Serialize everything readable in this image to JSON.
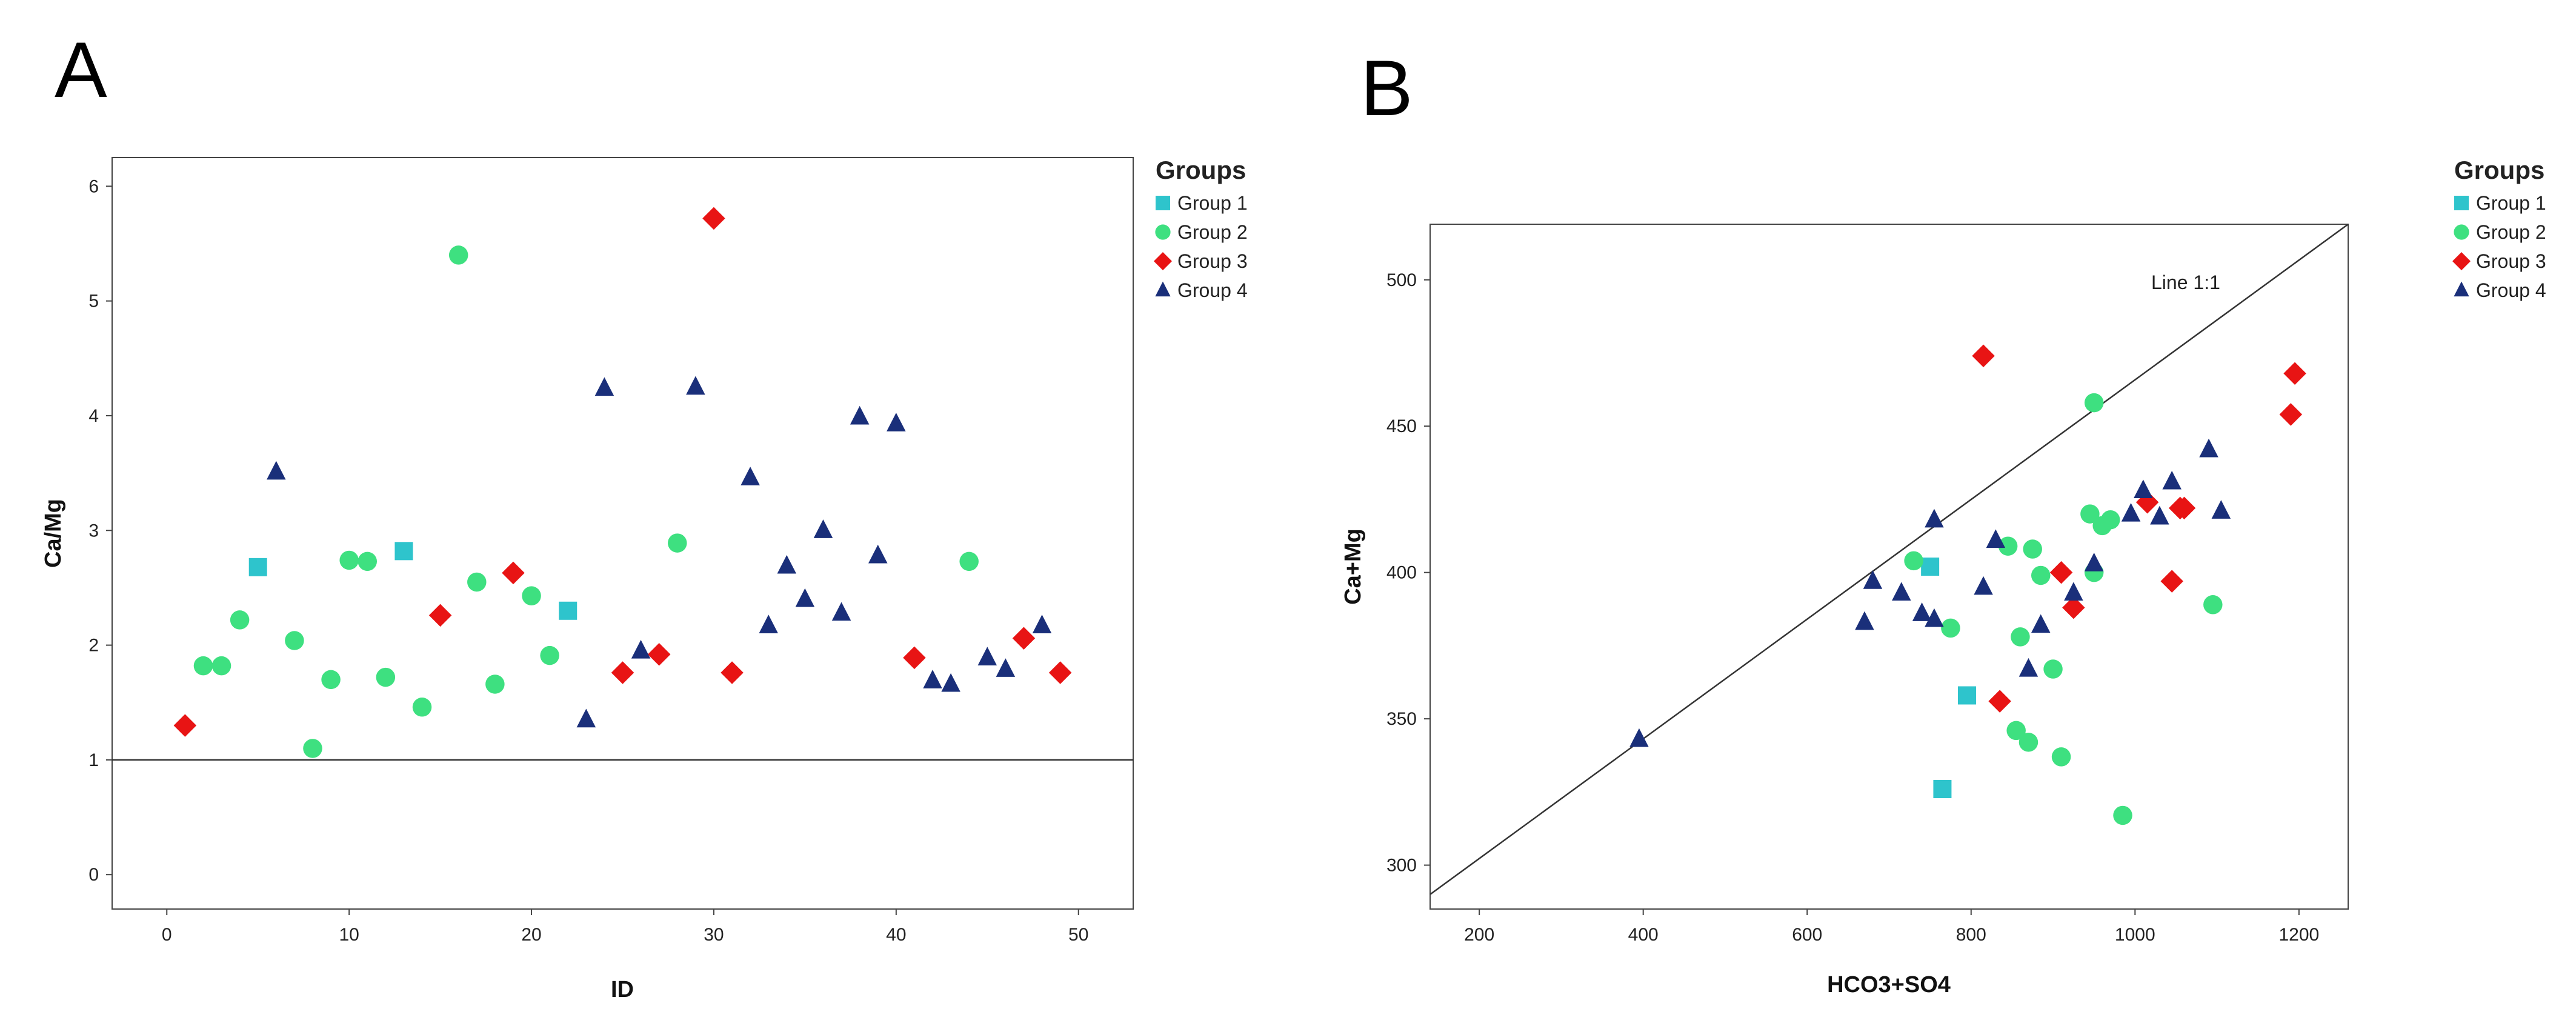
{
  "colors": {
    "Group 1": "#2ec4cc",
    "Group 2": "#3ee080",
    "Group 3": "#e81414",
    "Group 4": "#1a2f7a"
  },
  "legend": {
    "title": "Groups",
    "items": [
      {
        "name": "Group 1",
        "marker": "square"
      },
      {
        "name": "Group 2",
        "marker": "circle"
      },
      {
        "name": "Group 3",
        "marker": "diamond"
      },
      {
        "name": "Group 4",
        "marker": "triangle"
      }
    ]
  },
  "chart_data": [
    {
      "panel": "A",
      "type": "scatter",
      "title": "",
      "xlabel": "ID",
      "ylabel": "Ca/Mg",
      "xlim": [
        -3,
        53
      ],
      "ylim": [
        -0.3,
        6.25
      ],
      "xticks": [
        0,
        10,
        20,
        30,
        40,
        50
      ],
      "yticks": [
        0,
        1,
        2,
        3,
        4,
        5,
        6
      ],
      "reference_line": {
        "type": "hline",
        "y": 1
      },
      "legend_title": "Groups",
      "legend_position": "right",
      "series": [
        {
          "name": "Group 1",
          "points": [
            [
              5,
              2.68
            ],
            [
              13,
              2.82
            ],
            [
              22,
              2.3
            ]
          ]
        },
        {
          "name": "Group 2",
          "points": [
            [
              2,
              1.82
            ],
            [
              3,
              1.82
            ],
            [
              4,
              2.22
            ],
            [
              7,
              2.04
            ],
            [
              8,
              1.1
            ],
            [
              9,
              1.7
            ],
            [
              10,
              2.74
            ],
            [
              11,
              2.73
            ],
            [
              12,
              1.72
            ],
            [
              14,
              1.46
            ],
            [
              16,
              5.4
            ],
            [
              17,
              2.55
            ],
            [
              18,
              1.66
            ],
            [
              20,
              2.43
            ],
            [
              21,
              1.91
            ],
            [
              28,
              2.89
            ],
            [
              44,
              2.73
            ]
          ]
        },
        {
          "name": "Group 3",
          "points": [
            [
              1,
              1.3
            ],
            [
              15,
              2.26
            ],
            [
              19,
              2.63
            ],
            [
              25,
              1.76
            ],
            [
              27,
              1.92
            ],
            [
              30,
              5.72
            ],
            [
              31,
              1.76
            ],
            [
              41,
              1.89
            ],
            [
              47,
              2.06
            ],
            [
              49,
              1.76
            ]
          ]
        },
        {
          "name": "Group 4",
          "points": [
            [
              6,
              3.51
            ],
            [
              23,
              1.35
            ],
            [
              24,
              4.24
            ],
            [
              26,
              1.95
            ],
            [
              29,
              4.25
            ],
            [
              32,
              3.46
            ],
            [
              33,
              2.17
            ],
            [
              34,
              2.69
            ],
            [
              35,
              2.4
            ],
            [
              36,
              3.0
            ],
            [
              37,
              2.28
            ],
            [
              38,
              3.99
            ],
            [
              39,
              2.78
            ],
            [
              40,
              3.93
            ],
            [
              42,
              1.69
            ],
            [
              43,
              1.66
            ],
            [
              45,
              1.89
            ],
            [
              46,
              1.79
            ],
            [
              48,
              2.17
            ]
          ]
        }
      ]
    },
    {
      "panel": "B",
      "type": "scatter",
      "title": "",
      "xlabel": "HCO3+SO4",
      "ylabel": "Ca+Mg",
      "xlim": [
        140,
        1260
      ],
      "ylim": [
        285,
        519
      ],
      "xticks": [
        200,
        400,
        600,
        800,
        1000,
        1200
      ],
      "yticks": [
        300,
        350,
        400,
        450,
        500
      ],
      "reference_line": {
        "type": "line",
        "from": [
          140,
          290
        ],
        "to": [
          1260,
          519
        ],
        "label": "Line 1:1"
      },
      "legend_title": "Groups",
      "legend_position": "right",
      "series": [
        {
          "name": "Group 1",
          "points": [
            [
              750,
              402
            ],
            [
              795,
              358
            ],
            [
              765,
              326
            ]
          ]
        },
        {
          "name": "Group 2",
          "points": [
            [
              730,
              404
            ],
            [
              775,
              381
            ],
            [
              845,
              409
            ],
            [
              860,
              378
            ],
            [
              855,
              346
            ],
            [
              870,
              342
            ],
            [
              875,
              408
            ],
            [
              885,
              399
            ],
            [
              900,
              367
            ],
            [
              910,
              337
            ],
            [
              945,
              420
            ],
            [
              950,
              458
            ],
            [
              950,
              400
            ],
            [
              960,
              416
            ],
            [
              970,
              418
            ],
            [
              985,
              317
            ],
            [
              1095,
              389
            ]
          ]
        },
        {
          "name": "Group 3",
          "points": [
            [
              815,
              474
            ],
            [
              835,
              356
            ],
            [
              910,
              400
            ],
            [
              925,
              388
            ],
            [
              1015,
              424
            ],
            [
              1045,
              397
            ],
            [
              1055,
              422
            ],
            [
              1060,
              422
            ],
            [
              1190,
              454
            ],
            [
              1195,
              468
            ]
          ]
        },
        {
          "name": "Group 4",
          "points": [
            [
              395,
              343
            ],
            [
              670,
              383
            ],
            [
              680,
              397
            ],
            [
              715,
              393
            ],
            [
              740,
              386
            ],
            [
              755,
              384
            ],
            [
              755,
              418
            ],
            [
              815,
              395
            ],
            [
              830,
              411
            ],
            [
              870,
              367
            ],
            [
              885,
              382
            ],
            [
              925,
              393
            ],
            [
              950,
              403
            ],
            [
              995,
              420
            ],
            [
              1010,
              428
            ],
            [
              1030,
              419
            ],
            [
              1045,
              431
            ],
            [
              1090,
              442
            ],
            [
              1105,
              421
            ]
          ]
        }
      ]
    }
  ]
}
